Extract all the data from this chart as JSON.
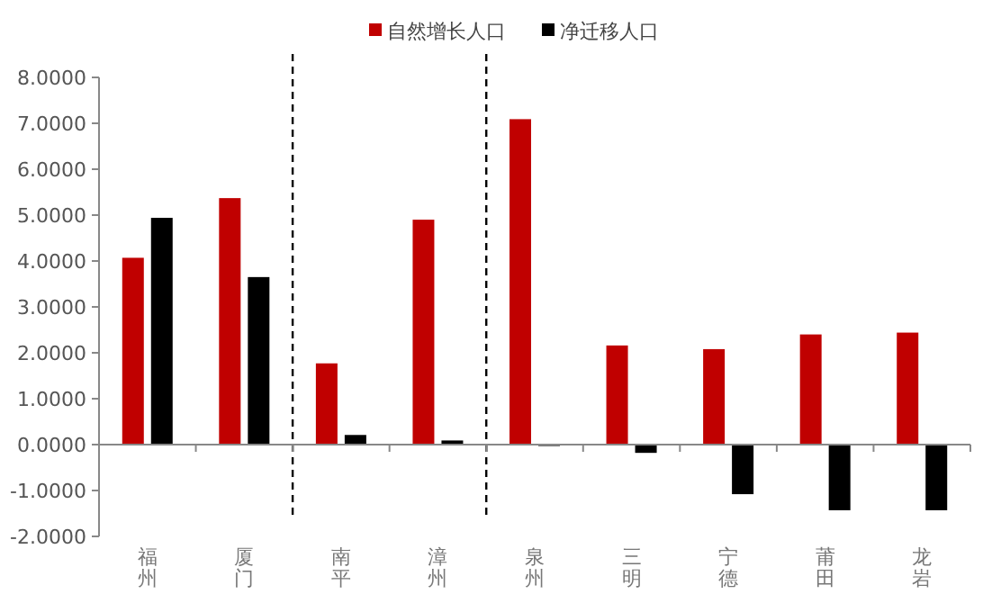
{
  "chart_data": {
    "type": "bar",
    "categories": [
      "福州",
      "厦门",
      "南平",
      "漳州",
      "泉州",
      "三明",
      "宁德",
      "莆田",
      "龙岩"
    ],
    "series": [
      {
        "name": "自然增长人口",
        "color": "#c00000",
        "values": [
          4.07,
          5.37,
          1.77,
          4.9,
          7.09,
          2.16,
          2.08,
          2.4,
          2.44
        ]
      },
      {
        "name": "净迁移人口",
        "color": "#000000",
        "values": [
          4.94,
          3.65,
          0.21,
          0.09,
          -0.03,
          -0.18,
          -1.08,
          -1.43,
          -1.43
        ]
      }
    ],
    "ylim": [
      -2,
      8
    ],
    "yticks": [
      {
        "value": -2,
        "label": "-2.0000"
      },
      {
        "value": -1,
        "label": "-1.0000"
      },
      {
        "value": 0,
        "label": "0.0000"
      },
      {
        "value": 1,
        "label": "1.0000"
      },
      {
        "value": 2,
        "label": "2.0000"
      },
      {
        "value": 3,
        "label": "3.0000"
      },
      {
        "value": 4,
        "label": "4.0000"
      },
      {
        "value": 5,
        "label": "5.0000"
      },
      {
        "value": 6,
        "label": "6.0000"
      },
      {
        "value": 7,
        "label": "7.0000"
      },
      {
        "value": 8,
        "label": "8.0000"
      }
    ],
    "grid": false,
    "legend": "top"
  }
}
